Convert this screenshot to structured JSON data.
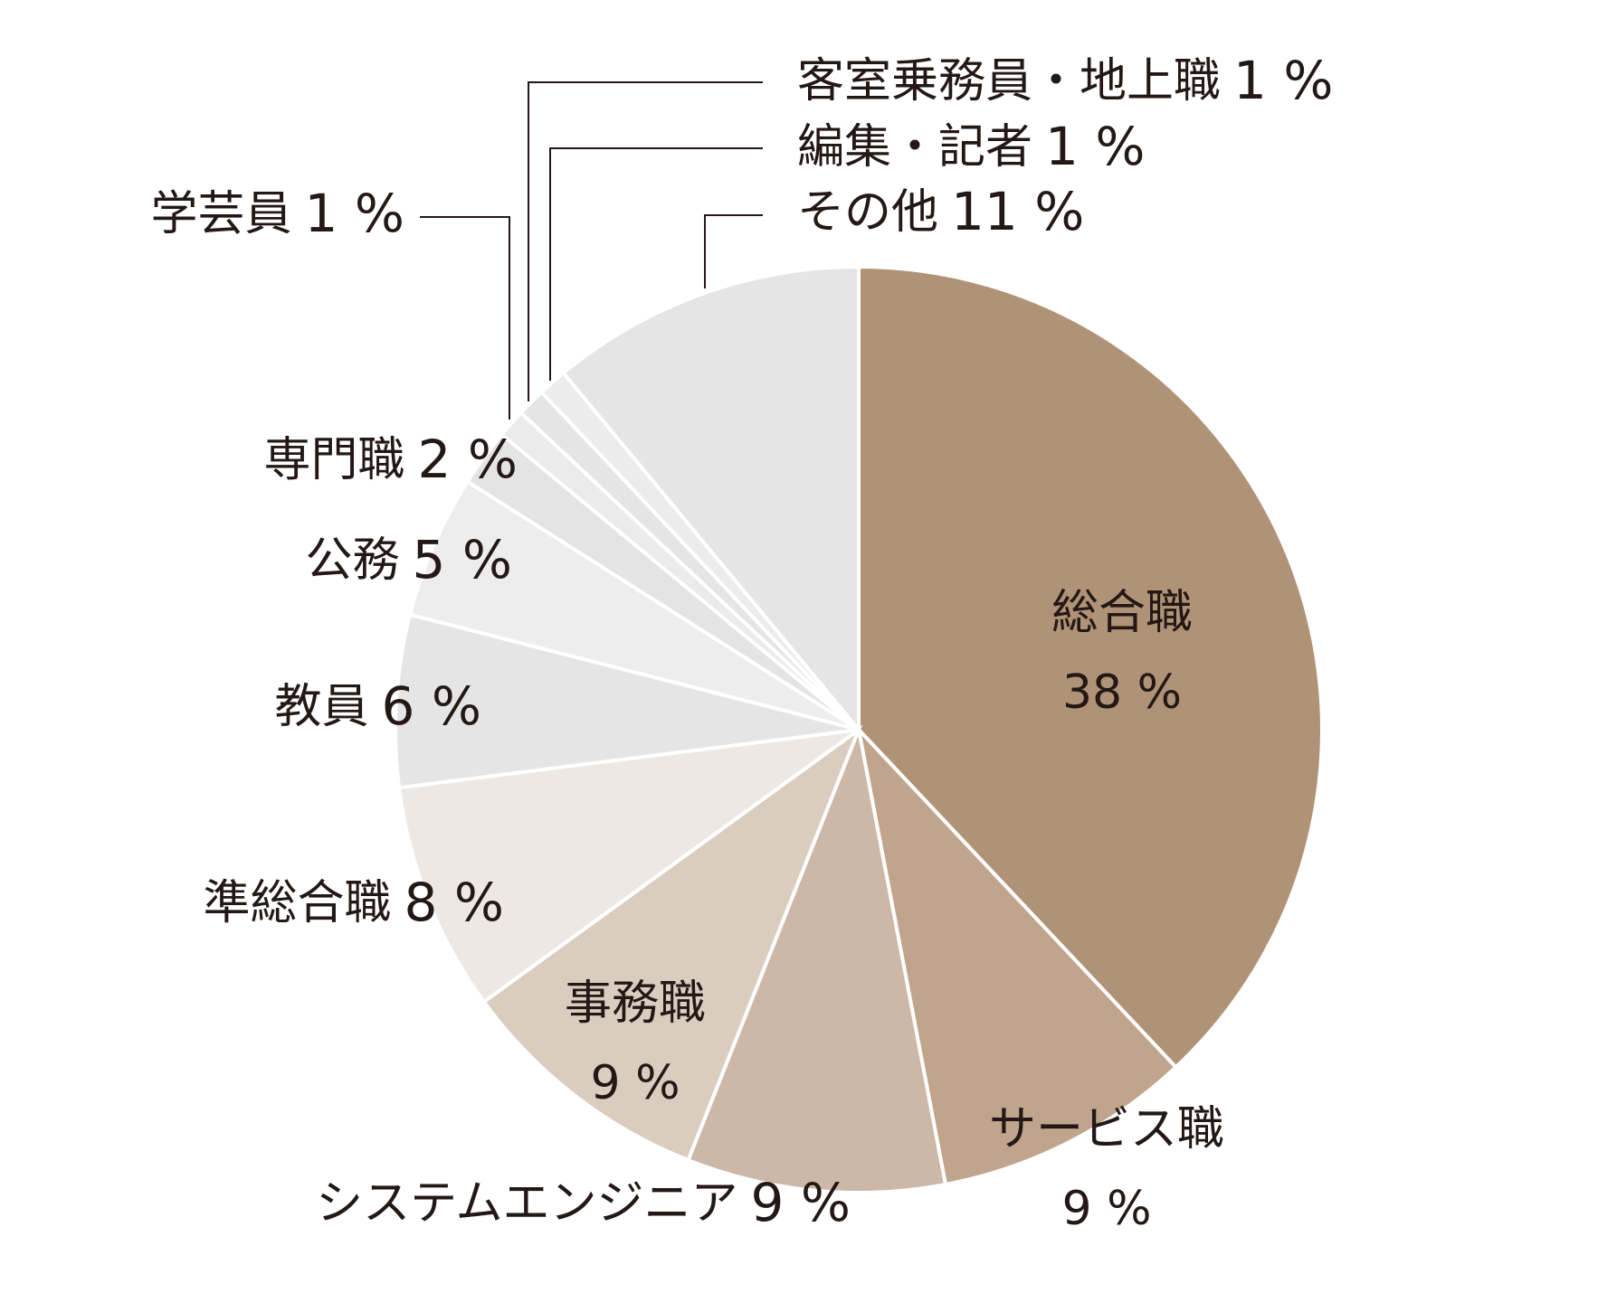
{
  "chart_data": {
    "type": "pie",
    "categories": [
      "総合職",
      "サービス職",
      "システムエンジニア",
      "事務職",
      "準総合職",
      "教員",
      "公務",
      "専門職",
      "学芸員",
      "客室乗務員・地上職",
      "編集・記者",
      "その他"
    ],
    "values": [
      38,
      9,
      9,
      9,
      8,
      6,
      5,
      2,
      1,
      1,
      1,
      11
    ],
    "value_labels": [
      "38 %",
      "9 %",
      "9 %",
      "9 %",
      "8 %",
      "6 %",
      "5 %",
      "2 %",
      "1 %",
      "1 %",
      "1 %",
      "11 %"
    ],
    "colors": [
      "#b09377",
      "#c0a48c",
      "#cdb7a6",
      "#dacdc0",
      "#ede8e3",
      "#e6e5e5",
      "#ededed",
      "#e4e4e4",
      "#ebebeb",
      "#e5e5e5",
      "#ececec",
      "#e5e5e5"
    ]
  }
}
